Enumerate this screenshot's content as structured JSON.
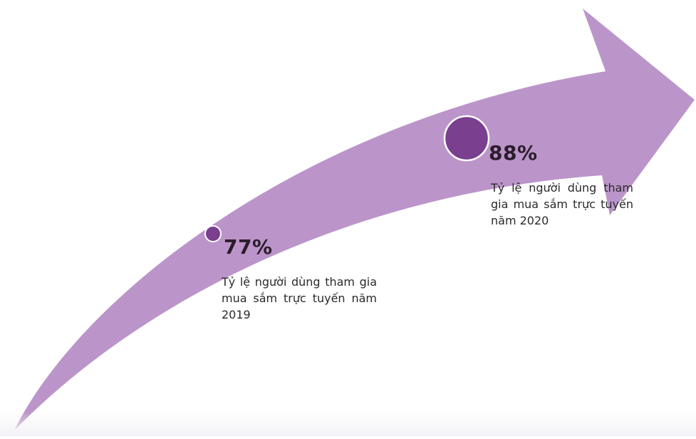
{
  "colors": {
    "arrow": "#bb95c9",
    "marker_fill": "#7a3f8e",
    "marker_outline": "#ffffff",
    "value_text": "#2b1c2c",
    "desc_text": "#2a2a2a"
  },
  "milestones": [
    {
      "value": "77%",
      "description": "Tỷ lệ người dùng tham gia mua sắm trực tuyến năm 2019"
    },
    {
      "value": "88%",
      "description": "Tỷ lệ người dùng tham gia mua sắm trực tuyến năm 2020"
    }
  ]
}
